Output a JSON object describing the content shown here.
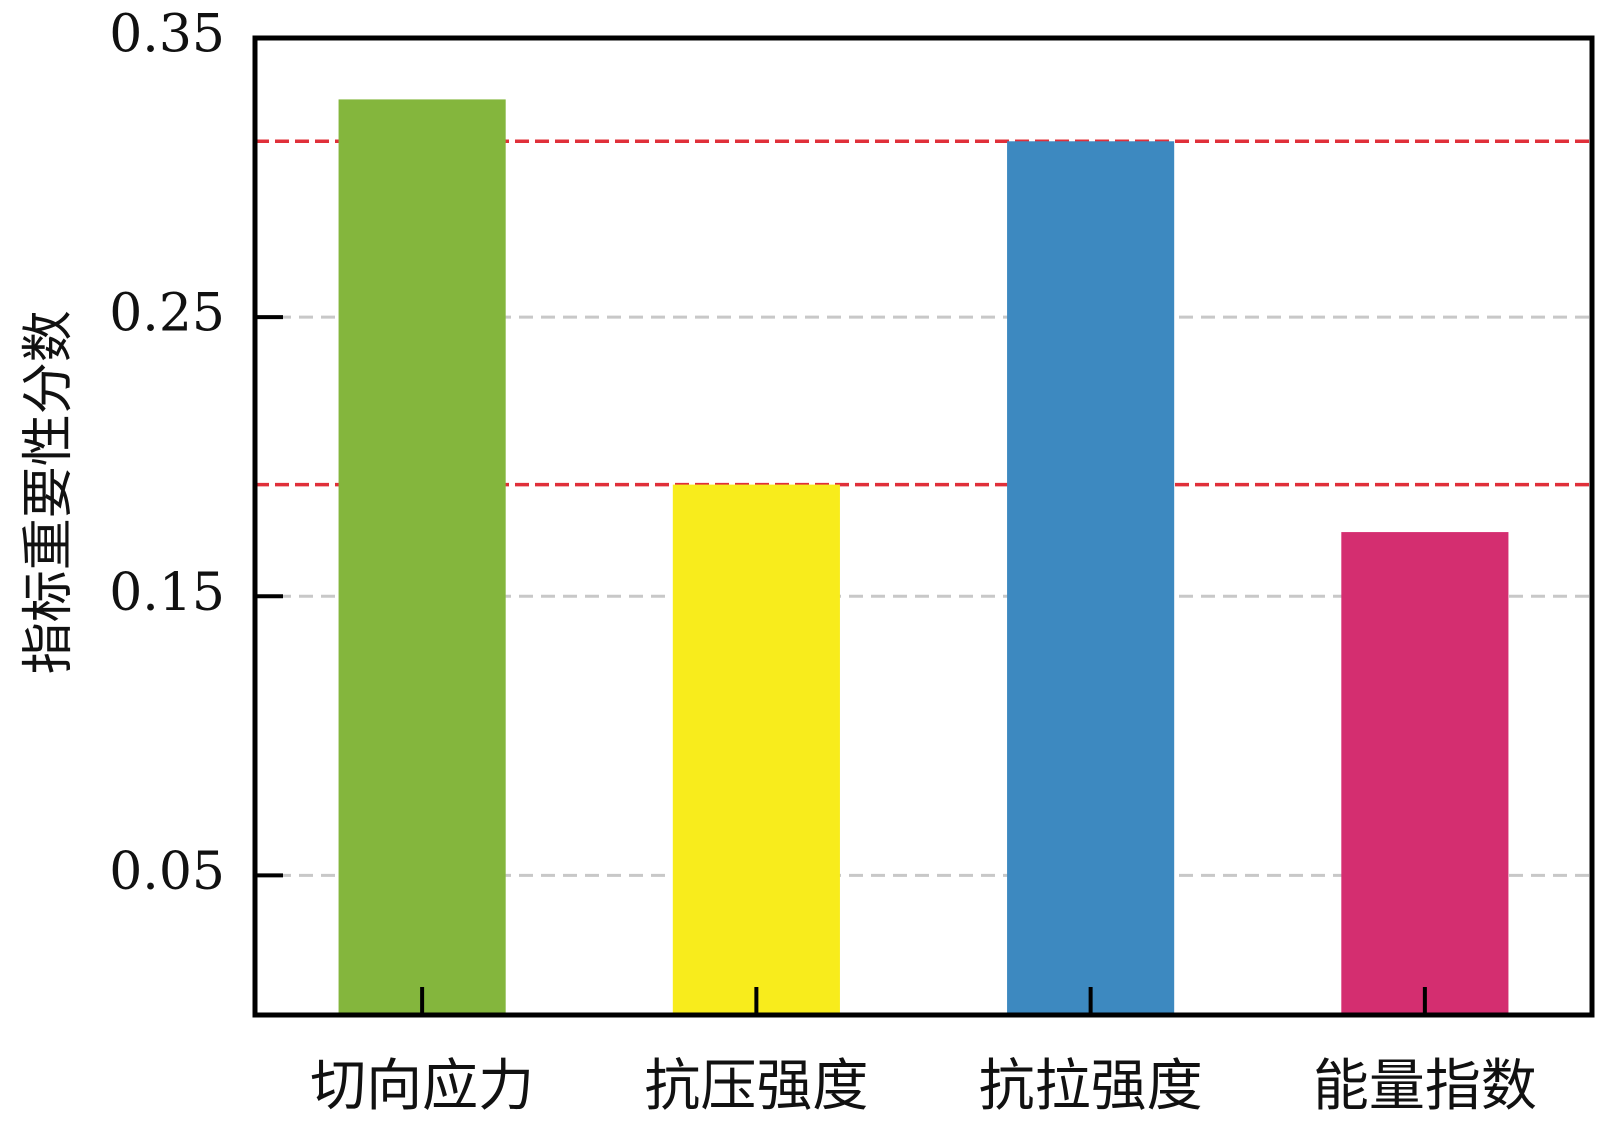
{
  "chart_data": {
    "type": "bar",
    "title": "",
    "xlabel": "",
    "ylabel": "指标重要性分数",
    "categories": [
      "切向应力",
      "抗压强度",
      "抗拉强度",
      "能量指数"
    ],
    "values": [
      0.328,
      0.19,
      0.313,
      0.173
    ],
    "bar_colors": [
      "#84b63d",
      "#f8ec1c",
      "#3d89c0",
      "#d42e70"
    ],
    "ylim": [
      0.0,
      0.35
    ],
    "yticks": [
      0.05,
      0.15,
      0.25,
      0.35
    ],
    "ytick_labels": [
      "0.05",
      "0.15",
      "0.25",
      "0.35"
    ],
    "grid": {
      "y": true,
      "style": "dashed",
      "color": "#c8c8c8"
    },
    "reference_lines": [
      {
        "value": 0.313,
        "color": "#e0303a",
        "style": "dashed"
      },
      {
        "value": 0.19,
        "color": "#e0303a",
        "style": "dashed"
      }
    ],
    "legend": "none"
  }
}
